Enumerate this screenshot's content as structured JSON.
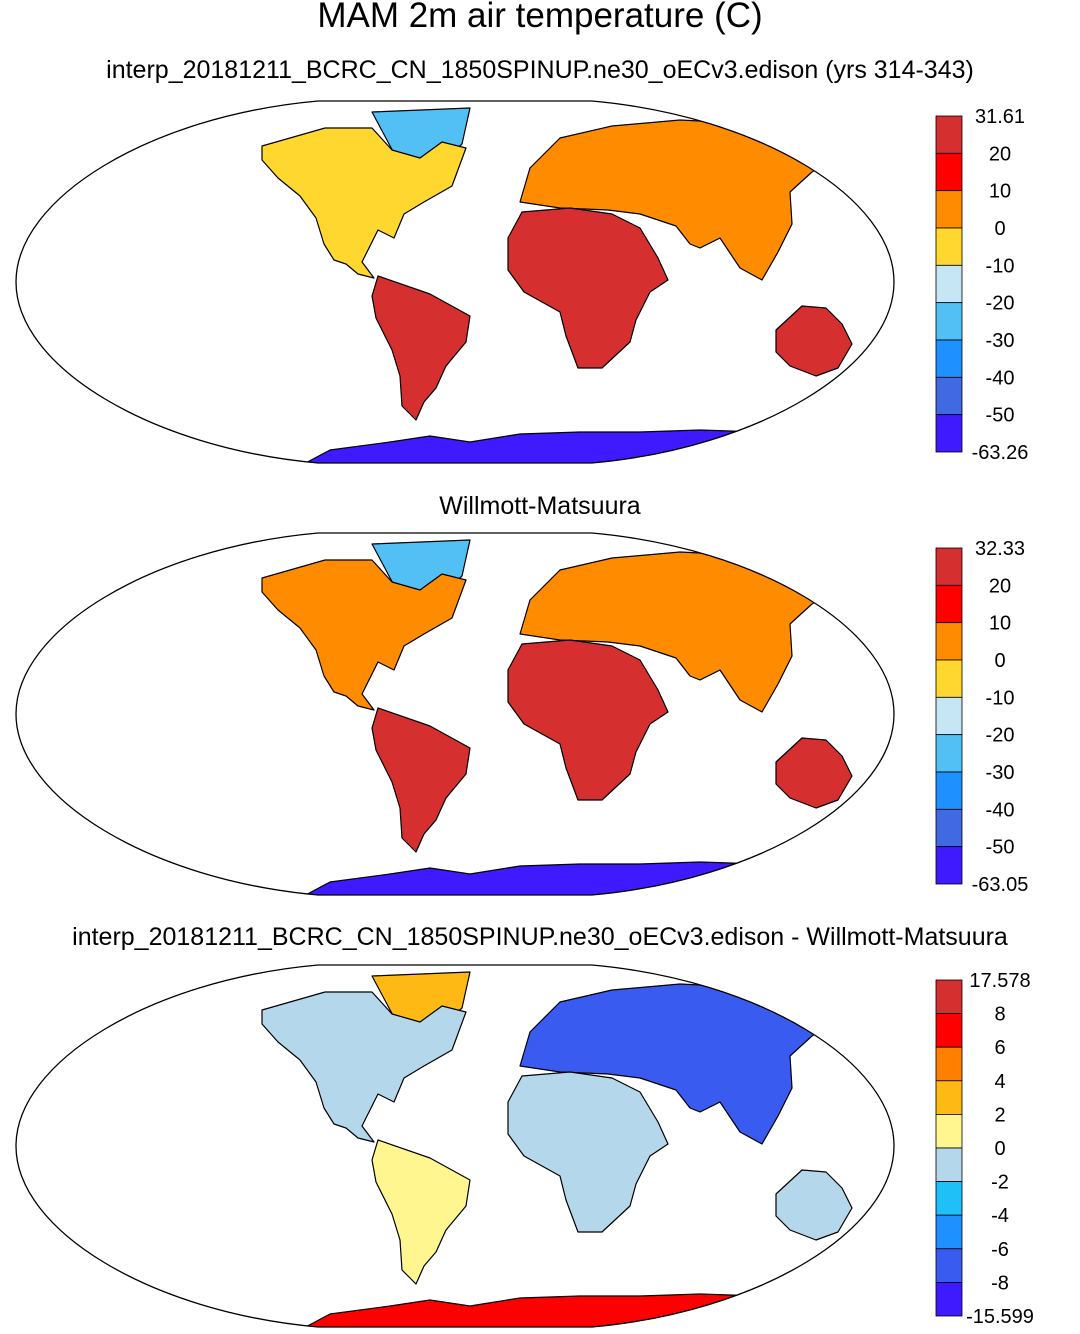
{
  "title": "MAM 2m air temperature (C)",
  "panels": [
    {
      "id": "model",
      "title": "interp_20181211_BCRC_CN_1850SPINUP.ne30_oECv3.edison (yrs 314-343)",
      "colorbar": {
        "labels": [
          "31.61",
          "20",
          "10",
          "0",
          "-10",
          "-20",
          "-30",
          "-40",
          "-50",
          "-63.26"
        ],
        "colors": [
          "#d62f2f",
          "#ff0000",
          "#ff8c00",
          "#ffd72e",
          "#c6e6f6",
          "#53c0f5",
          "#1e90ff",
          "#4169e1",
          "#3f1aff"
        ]
      }
    },
    {
      "id": "obs",
      "title": "Willmott-Matsuura",
      "colorbar": {
        "labels": [
          "32.33",
          "20",
          "10",
          "0",
          "-10",
          "-20",
          "-30",
          "-40",
          "-50",
          "-63.05"
        ],
        "colors": [
          "#d62f2f",
          "#ff0000",
          "#ff8c00",
          "#ffd72e",
          "#c6e6f6",
          "#53c0f5",
          "#1e90ff",
          "#4169e1",
          "#3f1aff"
        ]
      }
    },
    {
      "id": "diff",
      "title": "interp_20181211_BCRC_CN_1850SPINUP.ne30_oECv3.edison - Willmott-Matsuura",
      "colorbar": {
        "labels": [
          "17.578",
          "8",
          "6",
          "4",
          "2",
          "0",
          "-2",
          "-4",
          "-6",
          "-8",
          "-15.599"
        ],
        "colors": [
          "#d62f2f",
          "#ff0000",
          "#ff7f00",
          "#ffb915",
          "#fff68f",
          "#b4d7ec",
          "#1ec0f7",
          "#1e90ff",
          "#3a5bef",
          "#3f1aff"
        ]
      }
    }
  ],
  "land_fill": {
    "model": {
      "north_america": "#ffd72e",
      "south_america": "#d62f2f",
      "europe_asia": "#ff8c00",
      "africa": "#d62f2f",
      "australia": "#d62f2f",
      "greenland": "#53c0f5",
      "antarctica": "#3f1aff"
    },
    "obs": {
      "north_america": "#ff8c00",
      "south_america": "#d62f2f",
      "europe_asia": "#ff8c00",
      "africa": "#d62f2f",
      "australia": "#d62f2f",
      "greenland": "#53c0f5",
      "antarctica": "#3f1aff"
    },
    "diff": {
      "north_america": "#b4d7ec",
      "south_america": "#fff68f",
      "europe_asia": "#3a5bef",
      "africa": "#b4d7ec",
      "australia": "#b4d7ec",
      "greenland": "#ffb915",
      "antarctica": "#ff0000"
    }
  }
}
